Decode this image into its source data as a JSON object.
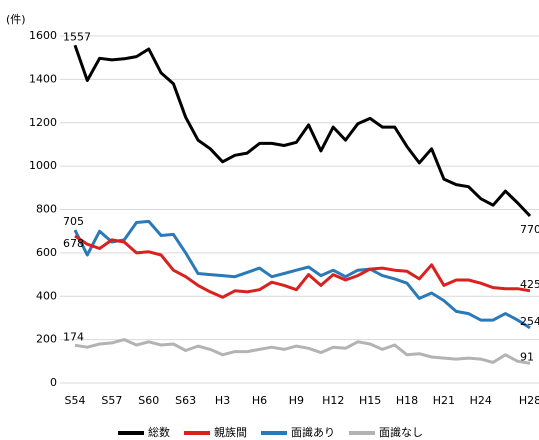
{
  "chart_data": {
    "type": "line",
    "y_axis_label": "(件)",
    "categories": [
      "S54",
      null,
      null,
      "S57",
      null,
      null,
      "S60",
      null,
      null,
      "S63",
      null,
      null,
      "H3",
      null,
      null,
      "H6",
      null,
      null,
      "H9",
      null,
      null,
      "H12",
      null,
      null,
      "H15",
      null,
      null,
      "H18",
      null,
      null,
      "H21",
      null,
      null,
      "H24",
      null,
      null,
      null,
      "H28"
    ],
    "series": [
      {
        "name": "総数",
        "color": "#000000",
        "values": [
          1557,
          1395,
          1497,
          1490,
          1495,
          1505,
          1540,
          1430,
          1380,
          1225,
          1120,
          1080,
          1020,
          1050,
          1060,
          1105,
          1105,
          1095,
          1110,
          1190,
          1070,
          1180,
          1120,
          1195,
          1220,
          1180,
          1180,
          1090,
          1015,
          1080,
          940,
          915,
          905,
          850,
          820,
          885,
          830,
          770
        ]
      },
      {
        "name": "親族間",
        "color": "#d9211f",
        "values": [
          678,
          640,
          620,
          660,
          650,
          600,
          605,
          590,
          520,
          490,
          450,
          420,
          395,
          425,
          420,
          430,
          465,
          450,
          430,
          500,
          450,
          500,
          475,
          495,
          525,
          530,
          520,
          515,
          480,
          545,
          450,
          475,
          475,
          460,
          440,
          435,
          435,
          425
        ]
      },
      {
        "name": "面識あり",
        "color": "#2a7ab9",
        "values": [
          705,
          590,
          700,
          650,
          660,
          740,
          745,
          680,
          685,
          600,
          505,
          500,
          495,
          490,
          510,
          530,
          490,
          505,
          520,
          535,
          495,
          520,
          490,
          520,
          525,
          495,
          480,
          460,
          390,
          415,
          380,
          330,
          320,
          290,
          290,
          320,
          290,
          254
        ]
      },
      {
        "name": "面識なし",
        "color": "#b3b3b3",
        "values": [
          174,
          165,
          180,
          185,
          200,
          175,
          190,
          175,
          180,
          150,
          170,
          155,
          130,
          145,
          145,
          155,
          165,
          155,
          170,
          160,
          140,
          165,
          160,
          190,
          180,
          155,
          175,
          130,
          135,
          120,
          115,
          110,
          115,
          110,
          95,
          130,
          100,
          91
        ]
      }
    ],
    "ylim": [
      0,
      1600
    ],
    "yticks": [
      0,
      200,
      400,
      600,
      800,
      1000,
      1200,
      1400,
      1600
    ],
    "grid": true,
    "legend": "bottom"
  }
}
